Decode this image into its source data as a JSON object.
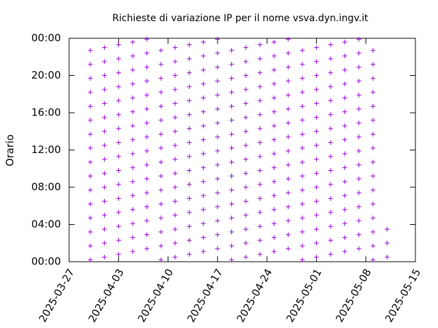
{
  "chart_data": {
    "type": "scatter",
    "title": "Richieste di variazione IP per il nome vsva.dyn.ingv.it",
    "ylabel": "Orario",
    "color": "#9400d3",
    "xlim": [
      "2025-03-27",
      "2025-05-15"
    ],
    "xticks": [
      "2025-03-27",
      "2025-04-03",
      "2025-04-10",
      "2025-04-17",
      "2025-04-24",
      "2025-05-01",
      "2025-05-08",
      "2025-05-15"
    ],
    "ylim": [
      0,
      24
    ],
    "yticks": [
      {
        "value": 0,
        "label": "00:00"
      },
      {
        "value": 4,
        "label": "04:00"
      },
      {
        "value": 8,
        "label": "08:00"
      },
      {
        "value": 12,
        "label": "12:00"
      },
      {
        "value": 16,
        "label": "16:00"
      },
      {
        "value": 20,
        "label": "20:00"
      },
      {
        "value": 24,
        "label": "00:00"
      }
    ],
    "x": [
      "2025-03-30",
      "2025-04-01",
      "2025-04-03",
      "2025-04-05",
      "2025-04-07",
      "2025-04-09",
      "2025-04-11",
      "2025-04-13",
      "2025-04-15",
      "2025-04-17",
      "2025-04-19",
      "2025-04-21",
      "2025-04-23",
      "2025-04-25",
      "2025-04-27",
      "2025-04-29",
      "2025-05-01",
      "2025-05-03",
      "2025-05-05",
      "2025-05-07",
      "2025-05-09",
      "2025-05-11"
    ],
    "values": [
      [
        0.2,
        1.7,
        3.2,
        4.7,
        6.2,
        7.7,
        9.2,
        10.7,
        12.2,
        13.7,
        15.2,
        16.7,
        18.2,
        19.7,
        21.2,
        22.7
      ],
      [
        0.5,
        2,
        3.5,
        5,
        6.5,
        8,
        9.5,
        11,
        12.5,
        14,
        15.5,
        17,
        18.5,
        20,
        21.5,
        23
      ],
      [
        0.8,
        2.3,
        3.8,
        5.3,
        6.8,
        8.3,
        9.8,
        11.3,
        12.8,
        14.3,
        15.8,
        17.3,
        18.8,
        20.3,
        21.8,
        23.3
      ],
      [
        1.1,
        2.6,
        4.1,
        5.6,
        7.1,
        8.6,
        10.1,
        11.6,
        13.1,
        14.6,
        16.1,
        17.6,
        19.1,
        20.6,
        22.1,
        23.6
      ],
      [
        1.4,
        2.9,
        4.4,
        5.9,
        7.4,
        8.9,
        10.4,
        11.9,
        13.4,
        14.9,
        16.4,
        17.9,
        19.4,
        20.9,
        22.4,
        23.9
      ],
      [
        0.2,
        1.7,
        3.2,
        4.7,
        6.2,
        7.7,
        9.2,
        10.7,
        12.2,
        13.7,
        15.2,
        16.7,
        18.2,
        19.7,
        21.2,
        22.7
      ],
      [
        0.5,
        2,
        3.5,
        5,
        6.5,
        8,
        9.5,
        11,
        12.5,
        14,
        15.5,
        17,
        18.5,
        20,
        21.5,
        23
      ],
      [
        0.8,
        2.3,
        3.8,
        5.3,
        6.8,
        8.3,
        9.8,
        11.3,
        12.8,
        14.3,
        15.8,
        17.3,
        18.8,
        20.3,
        21.8,
        23.3
      ],
      [
        1.1,
        2.6,
        4.1,
        5.6,
        7.1,
        8.6,
        10.1,
        11.6,
        13.1,
        14.6,
        16.1,
        17.6,
        19.1,
        20.6,
        22.1,
        23.6
      ],
      [
        1.4,
        2.9,
        4.4,
        5.9,
        7.4,
        8.9,
        10.4,
        11.9,
        13.4,
        14.9,
        16.4,
        17.9,
        19.4,
        20.9,
        22.4,
        23.9
      ],
      [
        0.2,
        1.7,
        3.2,
        4.7,
        6.2,
        7.7,
        9.2,
        10.7,
        12.2,
        13.7,
        15.2,
        16.7,
        18.2,
        19.7,
        21.2,
        22.7
      ],
      [
        0.5,
        2,
        3.5,
        5,
        6.5,
        8,
        9.5,
        11,
        12.5,
        14,
        15.5,
        17,
        18.5,
        20,
        21.5,
        23
      ],
      [
        0.8,
        2.3,
        3.8,
        5.3,
        6.8,
        8.3,
        9.8,
        11.3,
        12.8,
        14.3,
        15.8,
        17.3,
        18.8,
        20.3,
        21.8,
        23.3
      ],
      [
        1.1,
        2.6,
        4.1,
        5.6,
        7.1,
        8.6,
        10.1,
        11.6,
        13.1,
        14.6,
        16.1,
        17.6,
        19.1,
        20.6,
        22.1,
        23.6
      ],
      [
        1.4,
        2.9,
        4.4,
        5.9,
        7.4,
        8.9,
        10.4,
        11.9,
        13.4,
        14.9,
        16.4,
        17.9,
        19.4,
        20.9,
        22.4,
        23.9
      ],
      [
        0.2,
        1.7,
        3.2,
        4.7,
        6.2,
        7.7,
        9.2,
        10.7,
        12.2,
        13.7,
        15.2,
        16.7,
        18.2,
        19.7,
        21.2,
        22.7
      ],
      [
        0.5,
        2,
        3.5,
        5,
        6.5,
        8,
        9.5,
        11,
        12.5,
        14,
        15.5,
        17,
        18.5,
        20,
        21.5,
        23
      ],
      [
        0.8,
        2.3,
        3.8,
        5.3,
        6.8,
        8.3,
        9.8,
        11.3,
        12.8,
        14.3,
        15.8,
        17.3,
        18.8,
        20.3,
        21.8,
        23.3
      ],
      [
        1.1,
        2.6,
        4.1,
        5.6,
        7.1,
        8.6,
        10.1,
        11.6,
        13.1,
        14.6,
        16.1,
        17.6,
        19.1,
        20.6,
        22.1,
        23.6
      ],
      [
        1.4,
        2.9,
        4.4,
        5.9,
        7.4,
        8.9,
        10.4,
        11.9,
        13.4,
        14.9,
        16.4,
        17.9,
        19.4,
        20.9,
        22.4,
        23.9
      ],
      [
        0.2,
        1.7,
        3.2,
        4.7,
        6.2,
        7.7,
        9.2,
        10.7,
        12.2,
        13.7,
        15.2,
        16.7,
        18.2,
        19.7,
        21.2,
        22.7
      ],
      [
        0.5,
        2,
        3.5
      ]
    ]
  }
}
